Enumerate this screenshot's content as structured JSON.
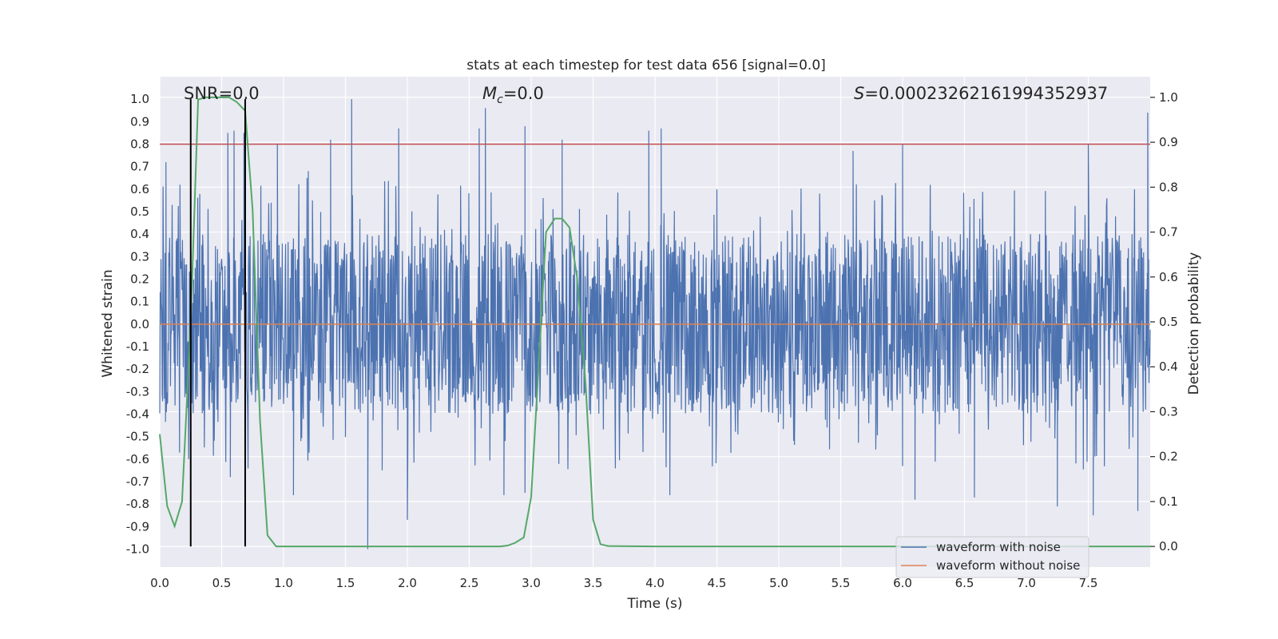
{
  "chart_data": {
    "type": "line",
    "title": "stats at each timestep for test data 656 [signal=0.0]",
    "xlabel": "Time (s)",
    "ylabel_left": "Whitened strain",
    "ylabel_right": "Detection probability",
    "xlim": [
      0.0,
      8.0
    ],
    "ylim_left": [
      -1.08,
      1.1
    ],
    "ylim_right": [
      -0.046,
      1.046
    ],
    "x_ticks": [
      "0.0",
      "0.5",
      "1.0",
      "1.5",
      "2.0",
      "2.5",
      "3.0",
      "3.5",
      "4.0",
      "4.5",
      "5.0",
      "5.5",
      "6.0",
      "6.5",
      "7.0",
      "7.5"
    ],
    "y_ticks_left": [
      "1.0",
      "0.9",
      "0.8",
      "0.7",
      "0.6",
      "0.5",
      "0.4",
      "0.3",
      "0.2",
      "0.1",
      "0.0",
      "-0.1",
      "-0.2",
      "-0.3",
      "-0.4",
      "-0.5",
      "-0.6",
      "-0.7",
      "-0.8",
      "-0.9",
      "-1.0"
    ],
    "y_ticks_right": [
      "1.0",
      "0.9",
      "0.8",
      "0.7",
      "0.6",
      "0.5",
      "0.4",
      "0.3",
      "0.2",
      "0.1",
      "0.0"
    ],
    "grid": true,
    "legend_position": "lower-right",
    "annotations": {
      "snr": "SNR=0.0",
      "mc_symbol": "M",
      "mc_sub": "c",
      "mc_value": "=0.0",
      "s_symbol": "S",
      "s_value": "=0.00023262161994352937"
    },
    "threshold_line": {
      "value": 0.8,
      "axis": "left",
      "color": "#c44e52"
    },
    "vertical_lines": {
      "x": [
        0.25,
        0.69
      ],
      "color": "#000000"
    },
    "series": [
      {
        "name": "waveform with noise",
        "color": "#4c72b0",
        "axis": "left",
        "description_values": "dense noise in approximately [-0.4, 0.4] with spikes up to 1.0 and down to -1.0",
        "envelope_peaks": [
          {
            "x": 0.05,
            "y": 0.72
          },
          {
            "x": 0.55,
            "y": 0.85
          },
          {
            "x": 0.6,
            "y": 0.86
          },
          {
            "x": 0.68,
            "y": 0.85
          },
          {
            "x": 0.95,
            "y": 0.8
          },
          {
            "x": 1.2,
            "y": 0.68
          },
          {
            "x": 1.38,
            "y": 0.82
          },
          {
            "x": 1.55,
            "y": 1.0
          },
          {
            "x": 1.93,
            "y": 0.87
          },
          {
            "x": 2.58,
            "y": 0.87
          },
          {
            "x": 2.63,
            "y": 0.96
          },
          {
            "x": 2.95,
            "y": 0.88
          },
          {
            "x": 3.25,
            "y": 0.82
          },
          {
            "x": 3.95,
            "y": 0.86
          },
          {
            "x": 4.05,
            "y": 0.87
          },
          {
            "x": 5.6,
            "y": 0.77
          },
          {
            "x": 6.0,
            "y": 0.8
          },
          {
            "x": 7.5,
            "y": 0.8
          },
          {
            "x": 7.98,
            "y": 0.94
          }
        ],
        "envelope_troughs": [
          {
            "x": 0.25,
            "y": -0.6
          },
          {
            "x": 0.57,
            "y": -0.68
          },
          {
            "x": 1.08,
            "y": -0.76
          },
          {
            "x": 1.68,
            "y": -1.0
          },
          {
            "x": 2.0,
            "y": -0.87
          },
          {
            "x": 2.78,
            "y": -0.76
          },
          {
            "x": 2.95,
            "y": -0.75
          },
          {
            "x": 4.12,
            "y": -0.76
          },
          {
            "x": 6.1,
            "y": -0.78
          },
          {
            "x": 6.58,
            "y": -0.77
          },
          {
            "x": 7.25,
            "y": -0.81
          },
          {
            "x": 7.54,
            "y": -0.85
          },
          {
            "x": 7.9,
            "y": -0.83
          }
        ]
      },
      {
        "name": "waveform without noise",
        "color": "#dd8452",
        "axis": "left",
        "x": [
          0.0,
          8.0
        ],
        "y": [
          0.0,
          0.0
        ]
      },
      {
        "name": "detection probability",
        "color": "#55a868",
        "axis": "right",
        "x": [
          0.0,
          0.06,
          0.12,
          0.18,
          0.25,
          0.31,
          0.37,
          0.43,
          0.5,
          0.56,
          0.62,
          0.69,
          0.75,
          0.81,
          0.87,
          0.94,
          1.0,
          1.5,
          2.0,
          2.5,
          2.75,
          2.81,
          2.87,
          2.94,
          3.0,
          3.06,
          3.12,
          3.19,
          3.25,
          3.31,
          3.37,
          3.44,
          3.5,
          3.56,
          3.62,
          4.0,
          5.0,
          6.0,
          7.0,
          8.0
        ],
        "y": [
          0.25,
          0.09,
          0.045,
          0.1,
          0.5,
          0.995,
          1.0,
          1.0,
          1.0,
          1.0,
          0.99,
          0.97,
          0.75,
          0.28,
          0.025,
          0.0,
          0.0,
          0.0,
          0.0,
          0.0,
          0.0,
          0.002,
          0.008,
          0.02,
          0.11,
          0.4,
          0.7,
          0.73,
          0.73,
          0.71,
          0.6,
          0.36,
          0.06,
          0.005,
          0.001,
          0.0,
          0.0,
          0.0,
          0.0,
          0.0
        ]
      }
    ]
  }
}
